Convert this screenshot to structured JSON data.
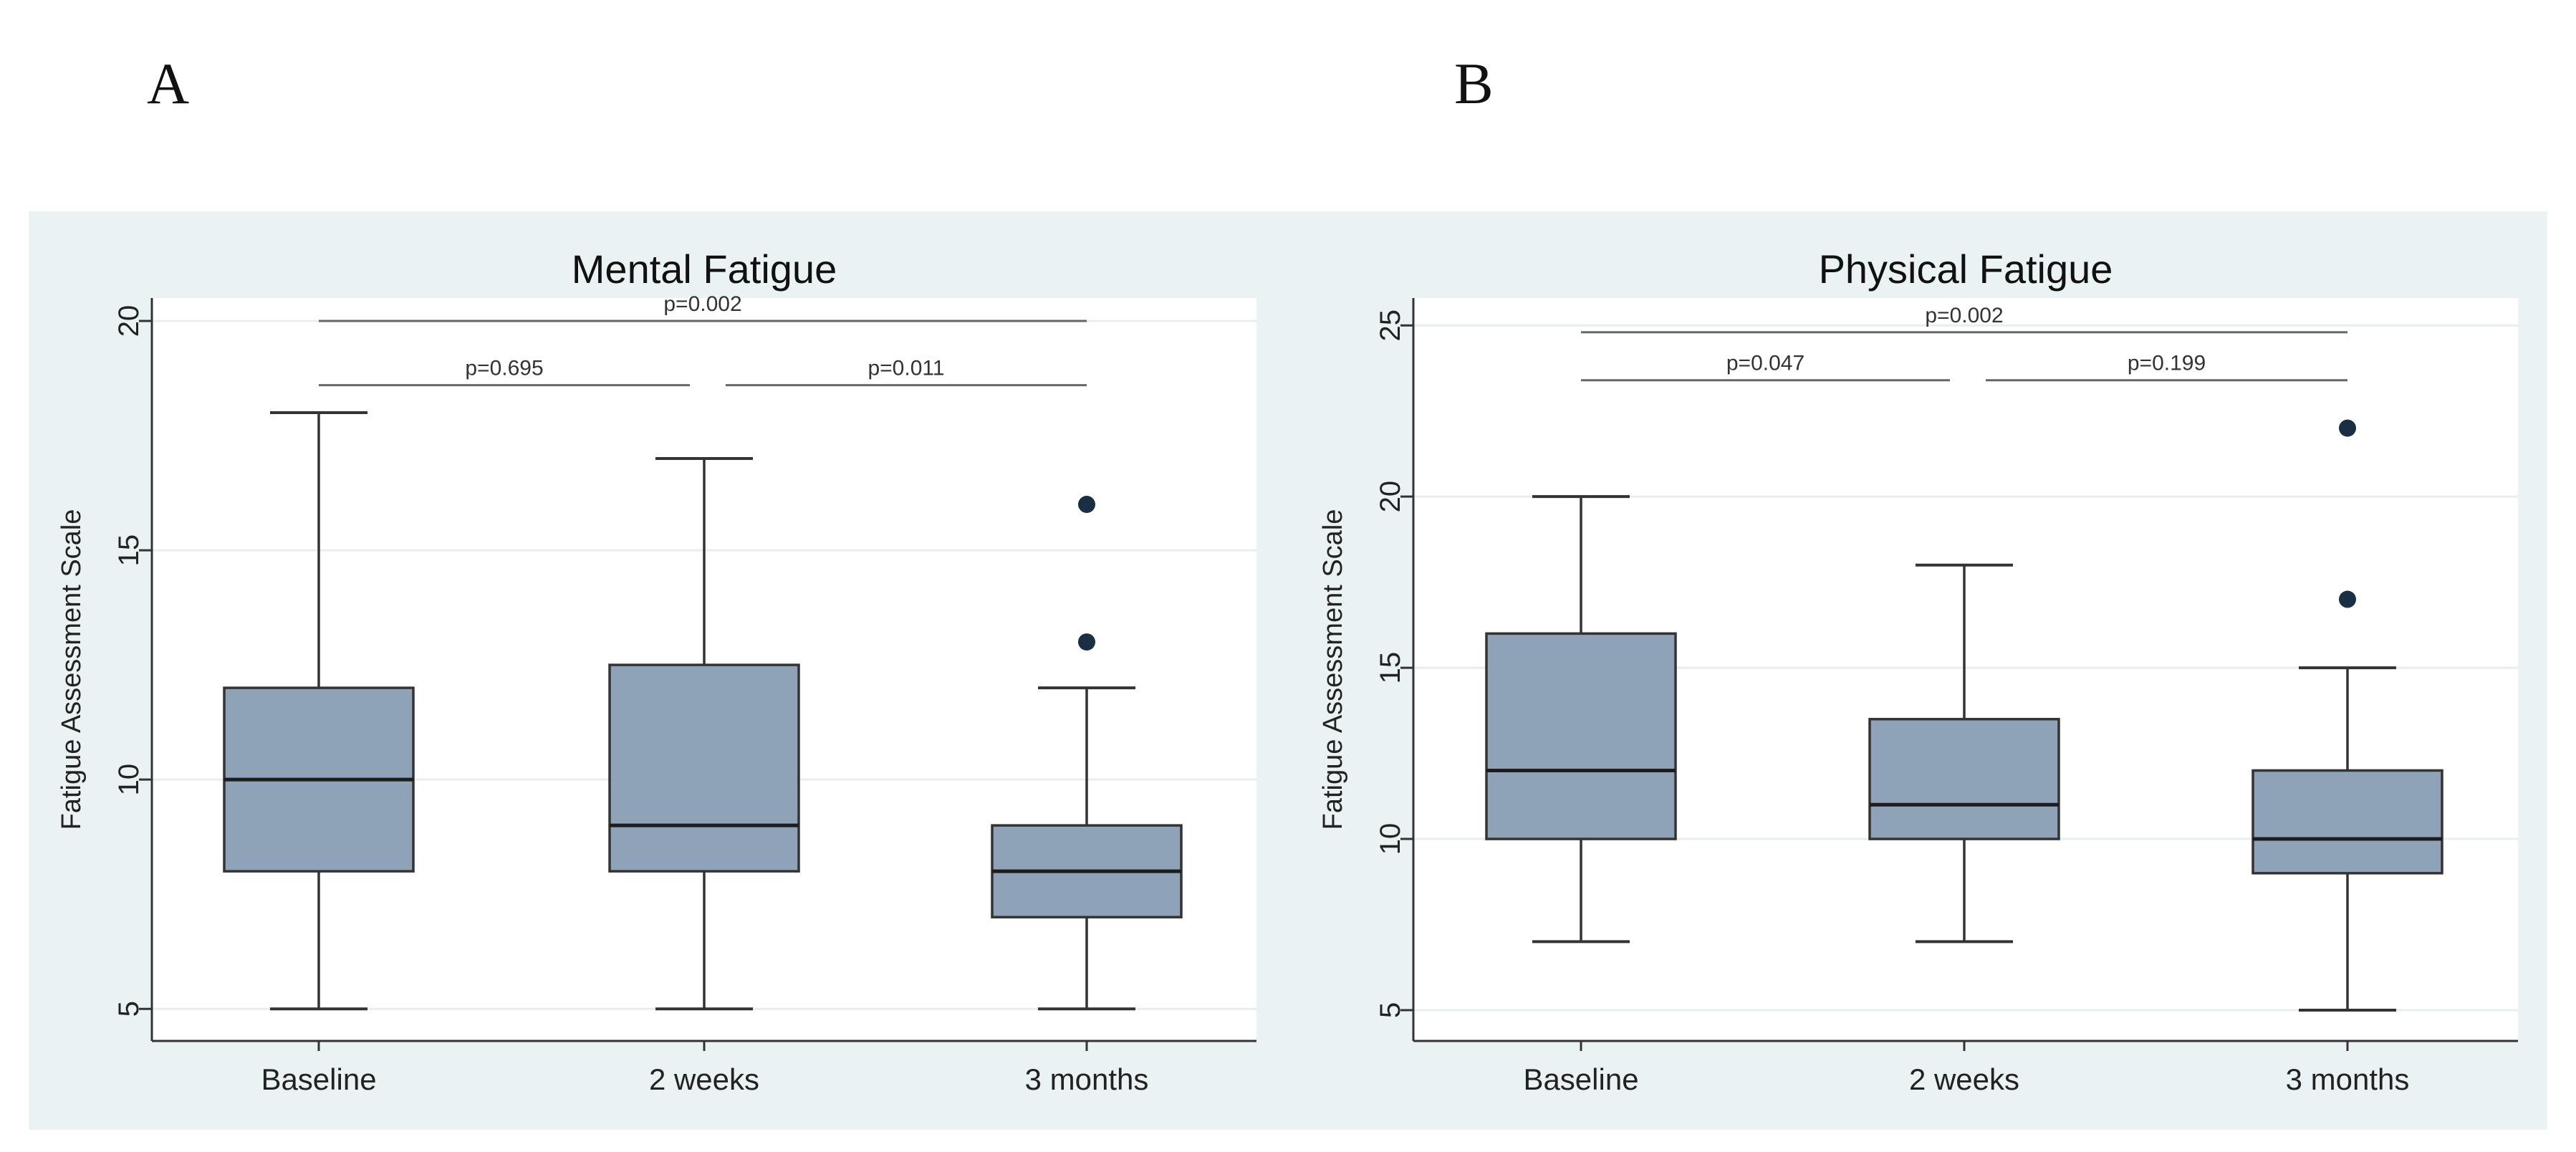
{
  "panels": {
    "a_letter": "A",
    "b_letter": "B"
  },
  "colors": {
    "box_fill": "#8ea3b7",
    "outer_bg": "#eaf2f3",
    "outlier": "#1a2f44"
  },
  "chart_data": [
    {
      "type": "box",
      "title": "Mental Fatigue",
      "xlabel": "",
      "ylabel": "Fatigue Assessment Scale",
      "ylim": [
        4.3,
        20.5
      ],
      "yticks": [
        5,
        10,
        15,
        20
      ],
      "grid": true,
      "categories": [
        "Baseline",
        "2 weeks",
        "3 months"
      ],
      "boxes": [
        {
          "min": 5,
          "q1": 8,
          "median": 10,
          "q3": 12,
          "max": 18,
          "outliers": []
        },
        {
          "min": 5,
          "q1": 8,
          "median": 9,
          "q3": 12.5,
          "max": 17,
          "outliers": []
        },
        {
          "min": 5,
          "q1": 7,
          "median": 8,
          "q3": 9,
          "max": 12,
          "outliers": [
            13,
            16
          ]
        }
      ],
      "comparisons": [
        {
          "from": 0,
          "to": 2,
          "label": "p=0.002",
          "level": 20.0
        },
        {
          "from": 0,
          "to": 1,
          "label": "p=0.695",
          "level": 18.6
        },
        {
          "from": 1,
          "to": 2,
          "label": "p=0.011",
          "level": 18.6
        }
      ]
    },
    {
      "type": "box",
      "title": "Physical Fatigue",
      "xlabel": "",
      "ylabel": "Fatigue Assessment Scale",
      "ylim": [
        4.1,
        25.8
      ],
      "yticks": [
        5,
        10,
        15,
        20,
        25
      ],
      "grid": true,
      "categories": [
        "Baseline",
        "2 weeks",
        "3 months"
      ],
      "boxes": [
        {
          "min": 7,
          "q1": 10,
          "median": 12,
          "q3": 16,
          "max": 20,
          "outliers": []
        },
        {
          "min": 7,
          "q1": 10,
          "median": 11,
          "q3": 13.5,
          "max": 18,
          "outliers": []
        },
        {
          "min": 5,
          "q1": 9,
          "median": 10,
          "q3": 12,
          "max": 15,
          "outliers": [
            17,
            22
          ]
        }
      ],
      "comparisons": [
        {
          "from": 0,
          "to": 2,
          "label": "p=0.002",
          "level": 24.8
        },
        {
          "from": 0,
          "to": 1,
          "label": "p=0.047",
          "level": 23.4
        },
        {
          "from": 1,
          "to": 2,
          "label": "p=0.199",
          "level": 23.4
        }
      ]
    }
  ]
}
